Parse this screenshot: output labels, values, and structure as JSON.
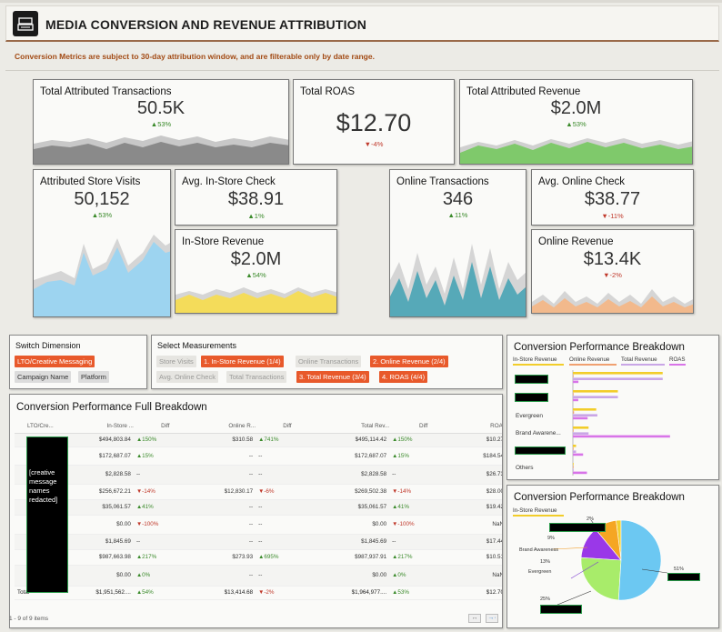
{
  "header": {
    "title": "MEDIA CONVERSION AND REVENUE ATTRIBUTION",
    "icon": "cash-register-icon"
  },
  "notice": "Conversion Metrics are subject to 30-day attribution window, and are filterable only by date range.",
  "kpis": {
    "transactions": {
      "title": "Total Attributed Transactions",
      "value": "50.5K",
      "change": "▲53%"
    },
    "roas": {
      "title": "Total ROAS",
      "value": "$12.70",
      "change": "▼-4%"
    },
    "revenue": {
      "title": "Total Attributed Revenue",
      "value": "$2.0M",
      "change": "▲53%"
    },
    "visits": {
      "title": "Attributed Store Visits",
      "value": "50,152",
      "change": "▲53%"
    },
    "instore_check": {
      "title": "Avg. In-Store Check",
      "value": "$38.91",
      "change": "▲1%"
    },
    "instore_revenue": {
      "title": "In-Store Revenue",
      "value": "$2.0M",
      "change": "▲54%"
    },
    "online_tx": {
      "title": "Online Transactions",
      "value": "346",
      "change": "▲11%"
    },
    "online_check": {
      "title": "Avg. Online Check",
      "value": "$38.77",
      "change": "▼-11%"
    },
    "online_revenue": {
      "title": "Online Revenue",
      "value": "$13.4K",
      "change": "▼-2%"
    }
  },
  "switch_dimension": {
    "title": "Switch Dimension",
    "options": [
      "LTO/Creative Messaging",
      "Campaign Name",
      "Platform"
    ]
  },
  "measurements": {
    "title": "Select Measurements",
    "row1": [
      "Store Visits",
      "1. In-Store Revenue (1/4)",
      "Online Transactions",
      "2. Online Revenue (2/4)"
    ],
    "row2": [
      "Avg. Online Check",
      "Total Transactions",
      "3. Total Revenue (3/4)",
      "4. ROAS (4/4)"
    ]
  },
  "table": {
    "title": "Conversion Performance Full Breakdown",
    "headers": [
      "LTO/Cre...",
      "In-Store ...",
      "Diff",
      "Online R...",
      "Diff",
      "Total Rev...",
      "Diff",
      "ROAS"
    ],
    "redacted_label": "[creative message names redacted]",
    "rows": [
      [
        "$494,803.84",
        "▲150%",
        "$310.58",
        "▲741%",
        "$495,114.42",
        "▲150%",
        "$10.27"
      ],
      [
        "$172,687.07",
        "▲15%",
        "--",
        "--",
        "$172,687.07",
        "▲15%",
        "$184.54"
      ],
      [
        "$2,828.58",
        "--",
        "--",
        "--",
        "$2,828.58",
        "--",
        "$26.73"
      ],
      [
        "$256,672.21",
        "▼-14%",
        "$12,830.17",
        "▼-6%",
        "$269,502.38",
        "▼-14%",
        "$28.00"
      ],
      [
        "$35,061.57",
        "▲41%",
        "--",
        "--",
        "$35,061.57",
        "▲41%",
        "$19.42"
      ],
      [
        "$0.00",
        "▼-100%",
        "--",
        "--",
        "$0.00",
        "▼-100%",
        "NaN"
      ],
      [
        "$1,845.69",
        "--",
        "--",
        "--",
        "$1,845.69",
        "--",
        "$17.44"
      ],
      [
        "$987,663.98",
        "▲217%",
        "$273.93",
        "▲695%",
        "$987,937.91",
        "▲217%",
        "$10.51"
      ],
      [
        "$0.00",
        "▲0%",
        "--",
        "--",
        "$0.00",
        "▲0%",
        "NaN"
      ]
    ],
    "total": [
      "Total",
      "$1,951,562....",
      "▲54%",
      "$13,414.68",
      "▼-2%",
      "$1,964,977....",
      "▲53%",
      "$12.70"
    ],
    "footer": "1 - 9 of 9 items"
  },
  "bar_panel": {
    "title": "Conversion Performance Breakdown",
    "legend": [
      "In-Store Revenue",
      "Online Revenue",
      "Total Revenue",
      "ROAS"
    ],
    "labels": [
      "Evergreen",
      "Brand Awarene...",
      "Others"
    ]
  },
  "pie_panel": {
    "title": "Conversion Performance Breakdown",
    "subtitle": "In-Store Revenue",
    "labels": [
      "2%",
      "9%",
      "Brand Awareness",
      "13%",
      "Evergreen",
      "51%",
      "25%"
    ]
  },
  "colors": {
    "accent": "#e8592b",
    "up": "#3a8a2a",
    "down": "#c0392b",
    "instore": "#f2cd2a",
    "online": "#f0a070",
    "total": "#c9a6e6",
    "roas": "#d874e8"
  },
  "chart_data": [
    {
      "type": "bar",
      "title": "Conversion Performance Breakdown",
      "categories": [
        "",
        "",
        "Evergreen",
        "Brand Awarene...",
        "",
        "Others"
      ],
      "series": [
        {
          "name": "In-Store Revenue",
          "values": [
            987664,
            494804,
            256672,
            172687,
            35062,
            4674
          ]
        },
        {
          "name": "Online Revenue",
          "values": [
            274,
            311,
            12830,
            0,
            0,
            0
          ]
        },
        {
          "name": "Total Revenue",
          "values": [
            987938,
            495114,
            269502,
            172687,
            35062,
            4674
          ]
        },
        {
          "name": "ROAS",
          "values": [
            10.51,
            10.27,
            28.0,
            184.54,
            19.42,
            26.73
          ]
        }
      ]
    },
    {
      "type": "pie",
      "title": "Conversion Performance Breakdown",
      "subtitle": "In-Store Revenue",
      "slices": [
        {
          "label": "",
          "value": 51
        },
        {
          "label": "",
          "value": 25
        },
        {
          "label": "Evergreen",
          "value": 13
        },
        {
          "label": "Brand Awareness",
          "value": 9
        },
        {
          "label": "",
          "value": 2
        }
      ]
    }
  ]
}
